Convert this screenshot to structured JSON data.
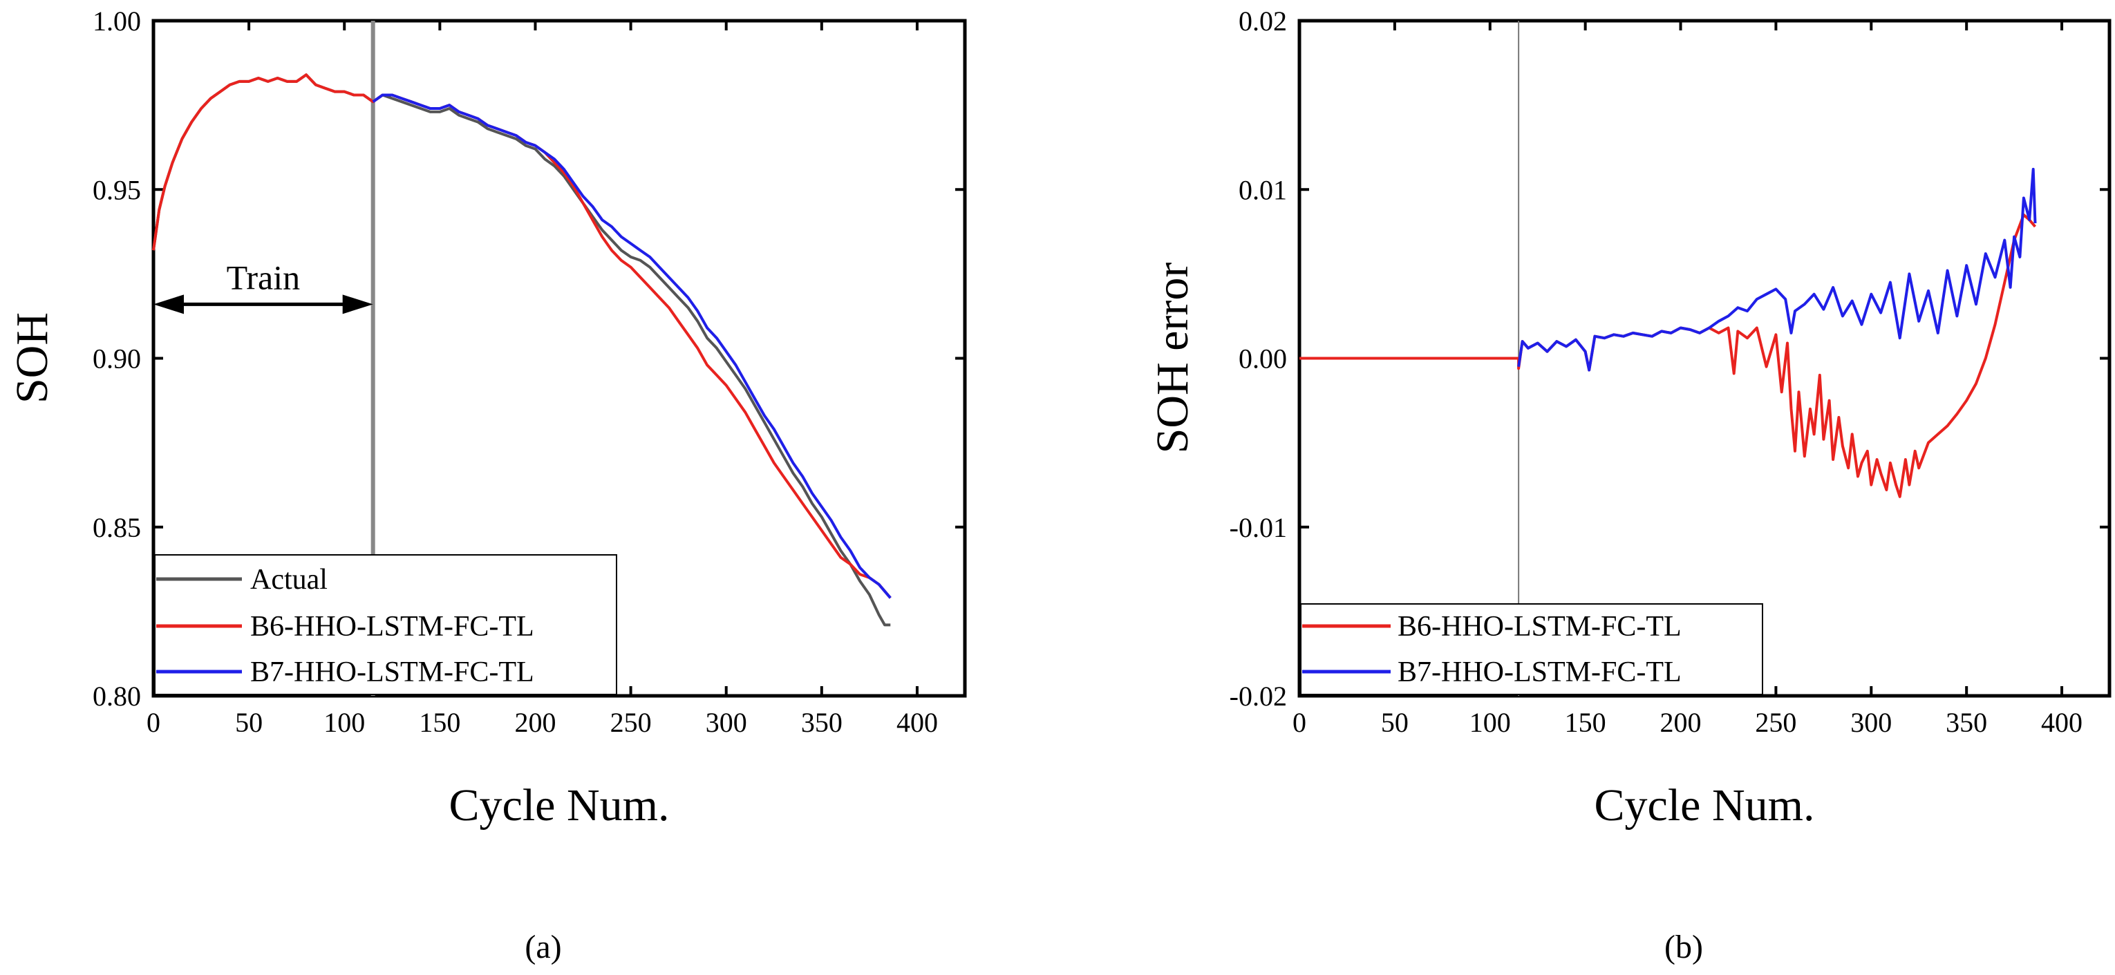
{
  "chart_data": [
    {
      "type": "line",
      "panel_label": "(a)",
      "xlabel": "Cycle Num.",
      "ylabel": "SOH",
      "xlim": [
        0,
        425
      ],
      "ylim": [
        0.8,
        1.0
      ],
      "xticks": [
        0,
        50,
        100,
        150,
        200,
        250,
        300,
        350,
        400
      ],
      "yticks": [
        0.8,
        0.85,
        0.9,
        0.95,
        1.0
      ],
      "ytick_labels": [
        "0.80",
        "0.85",
        "0.90",
        "0.95",
        "1.00"
      ],
      "divider_x": 115,
      "annotation": {
        "text": "Train",
        "x_from": 0,
        "x_to": 115,
        "y": 0.916
      },
      "legend": {
        "placement": "bottom-left",
        "entries": [
          "Actual",
          "B6-HHO-LSTM-FC-TL",
          "B7-HHO-LSTM-FC-TL"
        ]
      },
      "series": [
        {
          "name": "Actual",
          "color": "#555555",
          "x": [
            0,
            3,
            6,
            10,
            15,
            20,
            25,
            30,
            35,
            40,
            45,
            50,
            55,
            60,
            65,
            70,
            75,
            80,
            85,
            90,
            95,
            100,
            105,
            110,
            115,
            120,
            125,
            130,
            135,
            140,
            145,
            150,
            155,
            160,
            165,
            170,
            175,
            180,
            185,
            190,
            195,
            200,
            205,
            210,
            215,
            220,
            225,
            230,
            235,
            240,
            245,
            250,
            255,
            260,
            265,
            270,
            275,
            280,
            285,
            290,
            295,
            300,
            305,
            310,
            315,
            320,
            325,
            330,
            335,
            340,
            345,
            350,
            355,
            360,
            365,
            370,
            375,
            380,
            383,
            386
          ],
          "y": [
            0.932,
            0.944,
            0.951,
            0.958,
            0.965,
            0.97,
            0.974,
            0.977,
            0.979,
            0.981,
            0.982,
            0.982,
            0.983,
            0.982,
            0.983,
            0.982,
            0.982,
            0.984,
            0.981,
            0.98,
            0.979,
            0.979,
            0.978,
            0.978,
            0.976,
            0.978,
            0.977,
            0.976,
            0.975,
            0.974,
            0.973,
            0.973,
            0.974,
            0.972,
            0.971,
            0.97,
            0.968,
            0.967,
            0.966,
            0.965,
            0.963,
            0.962,
            0.959,
            0.957,
            0.954,
            0.95,
            0.946,
            0.942,
            0.938,
            0.935,
            0.932,
            0.93,
            0.929,
            0.927,
            0.924,
            0.921,
            0.918,
            0.915,
            0.911,
            0.906,
            0.903,
            0.899,
            0.895,
            0.891,
            0.886,
            0.881,
            0.876,
            0.871,
            0.866,
            0.862,
            0.857,
            0.853,
            0.848,
            0.843,
            0.839,
            0.834,
            0.83,
            0.824,
            0.821,
            0.821
          ]
        },
        {
          "name": "B6-HHO-LSTM-FC-TL",
          "color": "#e8231f",
          "x": [
            0,
            3,
            6,
            10,
            15,
            20,
            25,
            30,
            35,
            40,
            45,
            50,
            55,
            60,
            65,
            70,
            75,
            80,
            85,
            90,
            95,
            100,
            105,
            110,
            115,
            120,
            125,
            130,
            135,
            140,
            145,
            150,
            155,
            160,
            165,
            170,
            175,
            180,
            185,
            190,
            195,
            200,
            205,
            210,
            215,
            220,
            225,
            230,
            235,
            240,
            245,
            250,
            255,
            260,
            265,
            270,
            275,
            280,
            285,
            290,
            295,
            300,
            305,
            310,
            315,
            320,
            325,
            330,
            335,
            340,
            345,
            350,
            355,
            360,
            365,
            370,
            375,
            380,
            383,
            386
          ],
          "y": [
            0.932,
            0.944,
            0.951,
            0.958,
            0.965,
            0.97,
            0.974,
            0.977,
            0.979,
            0.981,
            0.982,
            0.982,
            0.983,
            0.982,
            0.983,
            0.982,
            0.982,
            0.984,
            0.981,
            0.98,
            0.979,
            0.979,
            0.978,
            0.978,
            0.976,
            0.978,
            0.978,
            0.977,
            0.976,
            0.975,
            0.974,
            0.974,
            0.975,
            0.973,
            0.972,
            0.971,
            0.969,
            0.968,
            0.967,
            0.966,
            0.964,
            0.963,
            0.961,
            0.958,
            0.955,
            0.951,
            0.946,
            0.941,
            0.936,
            0.932,
            0.929,
            0.927,
            0.924,
            0.921,
            0.918,
            0.915,
            0.911,
            0.907,
            0.903,
            0.898,
            0.895,
            0.892,
            0.888,
            0.884,
            0.879,
            0.874,
            0.869,
            0.865,
            0.861,
            0.857,
            0.853,
            0.849,
            0.845,
            0.841,
            0.839,
            0.836,
            0.835,
            0.833,
            0.831,
            0.829
          ]
        },
        {
          "name": "B7-HHO-LSTM-FC-TL",
          "color": "#1f1fe8",
          "x": [
            115,
            120,
            125,
            130,
            135,
            140,
            145,
            150,
            155,
            160,
            165,
            170,
            175,
            180,
            185,
            190,
            195,
            200,
            205,
            210,
            215,
            220,
            225,
            230,
            235,
            240,
            245,
            250,
            255,
            260,
            265,
            270,
            275,
            280,
            285,
            290,
            295,
            300,
            305,
            310,
            315,
            320,
            325,
            330,
            335,
            340,
            345,
            350,
            355,
            360,
            365,
            370,
            375,
            380,
            383,
            386
          ],
          "y": [
            0.976,
            0.978,
            0.978,
            0.977,
            0.976,
            0.975,
            0.974,
            0.974,
            0.975,
            0.973,
            0.972,
            0.971,
            0.969,
            0.968,
            0.967,
            0.966,
            0.964,
            0.963,
            0.961,
            0.959,
            0.956,
            0.952,
            0.948,
            0.945,
            0.941,
            0.939,
            0.936,
            0.934,
            0.932,
            0.93,
            0.927,
            0.924,
            0.921,
            0.918,
            0.914,
            0.909,
            0.906,
            0.902,
            0.898,
            0.893,
            0.888,
            0.883,
            0.879,
            0.874,
            0.869,
            0.865,
            0.86,
            0.856,
            0.852,
            0.847,
            0.843,
            0.838,
            0.835,
            0.833,
            0.831,
            0.829
          ]
        }
      ]
    },
    {
      "type": "line",
      "panel_label": "(b)",
      "xlabel": "Cycle Num.",
      "ylabel": "SOH error",
      "xlim": [
        0,
        425
      ],
      "ylim": [
        -0.02,
        0.02
      ],
      "xticks": [
        0,
        50,
        100,
        150,
        200,
        250,
        300,
        350,
        400
      ],
      "yticks": [
        -0.02,
        -0.01,
        0.0,
        0.01,
        0.02
      ],
      "ytick_labels": [
        "-0.02",
        "-0.01",
        "0.00",
        "0.01",
        "0.02"
      ],
      "divider_x": 115,
      "legend": {
        "placement": "bottom-left",
        "entries": [
          "B6-HHO-LSTM-FC-TL",
          "B7-HHO-LSTM-FC-TL"
        ]
      },
      "series": [
        {
          "name": "B6-HHO-LSTM-FC-TL",
          "color": "#e8231f",
          "x": [
            0,
            115,
            115,
            117,
            120,
            125,
            130,
            135,
            140,
            145,
            150,
            152,
            155,
            160,
            165,
            170,
            175,
            180,
            185,
            190,
            195,
            200,
            205,
            210,
            215,
            220,
            225,
            228,
            230,
            235,
            240,
            245,
            250,
            253,
            256,
            258,
            260,
            262,
            265,
            268,
            270,
            273,
            275,
            278,
            280,
            283,
            285,
            288,
            290,
            293,
            295,
            298,
            300,
            303,
            305,
            308,
            310,
            313,
            315,
            318,
            320,
            323,
            325,
            330,
            335,
            340,
            345,
            350,
            355,
            360,
            365,
            370,
            375,
            380,
            383,
            386
          ],
          "y": [
            0,
            0,
            -0.0006,
            0.001,
            0.0006,
            0.0009,
            0.0004,
            0.001,
            0.0007,
            0.0011,
            0.0004,
            -0.0007,
            0.0013,
            0.0012,
            0.0014,
            0.0013,
            0.0015,
            0.0014,
            0.0013,
            0.0016,
            0.0015,
            0.0018,
            0.0017,
            0.0015,
            0.0018,
            0.0015,
            0.0018,
            -0.0009,
            0.0016,
            0.0012,
            0.0018,
            -0.0005,
            0.0014,
            -0.002,
            0.0009,
            -0.003,
            -0.0055,
            -0.002,
            -0.0058,
            -0.003,
            -0.0045,
            -0.001,
            -0.0048,
            -0.0025,
            -0.006,
            -0.0035,
            -0.0052,
            -0.0065,
            -0.0045,
            -0.007,
            -0.0062,
            -0.0055,
            -0.0075,
            -0.006,
            -0.0068,
            -0.0078,
            -0.0062,
            -0.0075,
            -0.0082,
            -0.006,
            -0.0075,
            -0.0055,
            -0.0065,
            -0.005,
            -0.0045,
            -0.004,
            -0.0033,
            -0.0025,
            -0.0015,
            0.0,
            0.002,
            0.0045,
            0.007,
            0.0085,
            0.0082,
            0.0078
          ]
        },
        {
          "name": "B7-HHO-LSTM-FC-TL",
          "color": "#1f1fe8",
          "x": [
            115,
            117,
            120,
            125,
            130,
            135,
            140,
            145,
            150,
            152,
            155,
            160,
            165,
            170,
            175,
            180,
            185,
            190,
            195,
            200,
            205,
            210,
            215,
            220,
            225,
            230,
            235,
            240,
            245,
            250,
            255,
            258,
            260,
            265,
            270,
            275,
            280,
            285,
            290,
            295,
            300,
            305,
            310,
            315,
            320,
            325,
            330,
            335,
            340,
            345,
            350,
            355,
            360,
            365,
            370,
            373,
            375,
            378,
            380,
            383,
            385,
            386
          ],
          "y": [
            -0.0005,
            0.001,
            0.0006,
            0.0009,
            0.0004,
            0.001,
            0.0007,
            0.0011,
            0.0004,
            -0.0007,
            0.0013,
            0.0012,
            0.0014,
            0.0013,
            0.0015,
            0.0014,
            0.0013,
            0.0016,
            0.0015,
            0.0018,
            0.0017,
            0.0015,
            0.0018,
            0.0022,
            0.0025,
            0.003,
            0.0028,
            0.0035,
            0.0038,
            0.0041,
            0.0035,
            0.0015,
            0.0028,
            0.0032,
            0.0038,
            0.0029,
            0.0042,
            0.0025,
            0.0034,
            0.002,
            0.0038,
            0.0027,
            0.0045,
            0.0012,
            0.005,
            0.0022,
            0.004,
            0.0015,
            0.0052,
            0.0025,
            0.0055,
            0.0032,
            0.0062,
            0.0048,
            0.007,
            0.0042,
            0.0072,
            0.006,
            0.0095,
            0.0082,
            0.0112,
            0.008
          ]
        }
      ]
    }
  ]
}
